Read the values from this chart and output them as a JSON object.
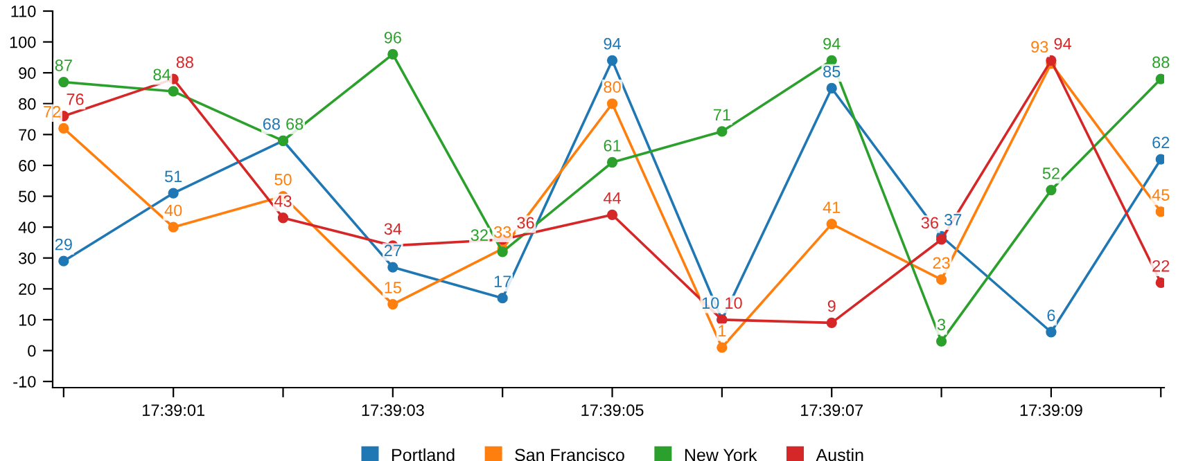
{
  "chart_data": {
    "type": "line",
    "categories": [
      null,
      "17:39:01",
      null,
      "17:39:03",
      null,
      "17:39:05",
      null,
      "17:39:07",
      null,
      "17:39:09",
      null
    ],
    "series": [
      {
        "name": "Portland",
        "color": "#1f77b4",
        "values": [
          29,
          51,
          68,
          27,
          17,
          94,
          10,
          85,
          37,
          6,
          62
        ]
      },
      {
        "name": "San Francisco",
        "color": "#ff7f0e",
        "values": [
          72,
          40,
          50,
          15,
          33,
          80,
          1,
          41,
          23,
          93,
          45
        ]
      },
      {
        "name": "New York",
        "color": "#2ca02c",
        "values": [
          87,
          84,
          68,
          96,
          32,
          61,
          71,
          94,
          3,
          52,
          88
        ]
      },
      {
        "name": "Austin",
        "color": "#d62728",
        "values": [
          76,
          88,
          43,
          34,
          36,
          44,
          10,
          9,
          36,
          94,
          22
        ]
      }
    ],
    "ylim": [
      -12,
      110
    ],
    "yticks": [
      -10,
      0,
      10,
      20,
      30,
      40,
      50,
      60,
      70,
      80,
      90,
      100,
      110
    ],
    "data_labels": true,
    "marker": "circle",
    "legend": "bottom",
    "grid": false
  }
}
